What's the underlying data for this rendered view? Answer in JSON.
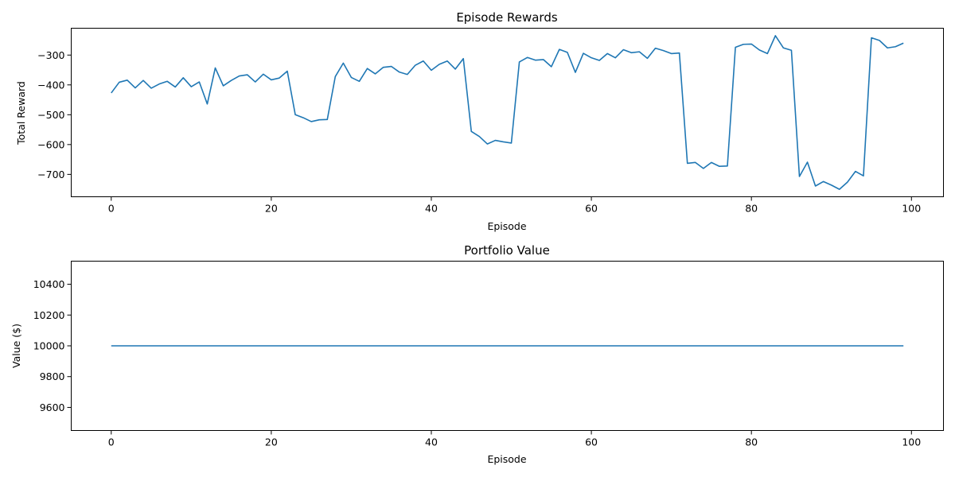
{
  "colors": {
    "line": "#1f77b4",
    "axes": "#000000",
    "background": "#ffffff"
  },
  "chart_data": [
    {
      "type": "line",
      "title": "Episode Rewards",
      "xlabel": "Episode",
      "ylabel": "Total Reward",
      "xlim": [
        -5,
        104
      ],
      "ylim": [
        -775,
        -210
      ],
      "xticks": [
        0,
        20,
        40,
        60,
        80,
        100
      ],
      "yticks": [
        -700,
        -600,
        -500,
        -400,
        -300
      ],
      "grid": false,
      "series": [
        {
          "x": [
            0,
            1,
            2,
            3,
            4,
            5,
            6,
            7,
            8,
            9,
            10,
            11,
            12,
            13,
            14,
            15,
            16,
            17,
            18,
            19,
            20,
            21,
            22,
            23,
            24,
            25,
            26,
            27,
            28,
            29,
            30,
            31,
            32,
            33,
            34,
            35,
            36,
            37,
            38,
            39,
            40,
            41,
            42,
            43,
            44,
            45,
            46,
            47,
            48,
            49,
            50,
            51,
            52,
            53,
            54,
            55,
            56,
            57,
            58,
            59,
            60,
            61,
            62,
            63,
            64,
            65,
            66,
            67,
            68,
            69,
            70,
            71,
            72,
            73,
            74,
            75,
            76,
            77,
            78,
            79,
            80,
            81,
            82,
            83,
            84,
            85,
            86,
            87,
            88,
            89,
            90,
            91,
            92,
            93,
            94,
            95,
            96,
            97,
            98,
            99
          ],
          "values": [
            -427,
            -391,
            -384,
            -410,
            -385,
            -411,
            -397,
            -388,
            -407,
            -376,
            -406,
            -390,
            -464,
            -343,
            -403,
            -385,
            -370,
            -366,
            -390,
            -364,
            -383,
            -377,
            -354,
            -500,
            -510,
            -523,
            -517,
            -516,
            -372,
            -327,
            -375,
            -388,
            -345,
            -363,
            -341,
            -338,
            -357,
            -365,
            -334,
            -320,
            -351,
            -331,
            -320,
            -347,
            -312,
            -556,
            -573,
            -598,
            -586,
            -591,
            -595,
            -323,
            -308,
            -317,
            -315,
            -339,
            -281,
            -291,
            -358,
            -294,
            -309,
            -318,
            -295,
            -309,
            -282,
            -292,
            -289,
            -311,
            -277,
            -285,
            -295,
            -293,
            -663,
            -660,
            -680,
            -660,
            -673,
            -672,
            -274,
            -264,
            -263,
            -283,
            -295,
            -235,
            -276,
            -284,
            -707,
            -659,
            -739,
            -724,
            -736,
            -750,
            -726,
            -690,
            -705,
            -242,
            -251,
            -276,
            -272,
            -260
          ]
        }
      ]
    },
    {
      "type": "line",
      "title": "Portfolio Value",
      "xlabel": "Episode",
      "ylabel": "Value ($)",
      "xlim": [
        -5,
        104
      ],
      "ylim": [
        9450,
        10550
      ],
      "xticks": [
        0,
        20,
        40,
        60,
        80,
        100
      ],
      "yticks": [
        9600,
        9800,
        10000,
        10200,
        10400
      ],
      "grid": false,
      "series": [
        {
          "x": [
            0,
            99
          ],
          "values": [
            10000,
            10000
          ]
        }
      ]
    }
  ]
}
